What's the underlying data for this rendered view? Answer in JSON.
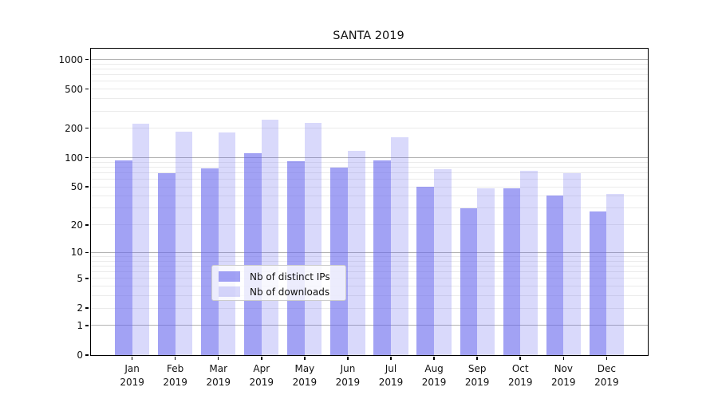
{
  "figure": {
    "background": "#ffffff"
  },
  "chart_data": {
    "type": "bar",
    "title": "SANTA 2019",
    "categories": [
      "Jan",
      "Feb",
      "Mar",
      "Apr",
      "May",
      "Jun",
      "Jul",
      "Aug",
      "Sep",
      "Oct",
      "Nov",
      "Dec"
    ],
    "category_year": "2019",
    "series": [
      {
        "name": "Nb of distinct IPs",
        "color_base": "#6464ed",
        "alpha": 0.6,
        "values": [
          93,
          70,
          77,
          112,
          92,
          79,
          93,
          50,
          30,
          48,
          41,
          28
        ]
      },
      {
        "name": "Nb of downloads",
        "color_base": "#6464ed",
        "alpha": 0.245,
        "values": [
          222,
          184,
          182,
          246,
          227,
          118,
          163,
          76,
          48,
          74,
          70,
          42
        ]
      }
    ],
    "xlabel": "",
    "ylabel": "",
    "yscale": "symlog",
    "ytick_labels": [
      0,
      1,
      2,
      5,
      10,
      20,
      50,
      100,
      200,
      500,
      1000
    ],
    "ylim": [
      0,
      1290
    ],
    "grid": {
      "orientation": "horizontal",
      "major_at": [
        1,
        10,
        100,
        1000
      ],
      "major_color": "#b3b3b3",
      "minor_color": "#ebebeb"
    },
    "legend_position": "lower center"
  }
}
